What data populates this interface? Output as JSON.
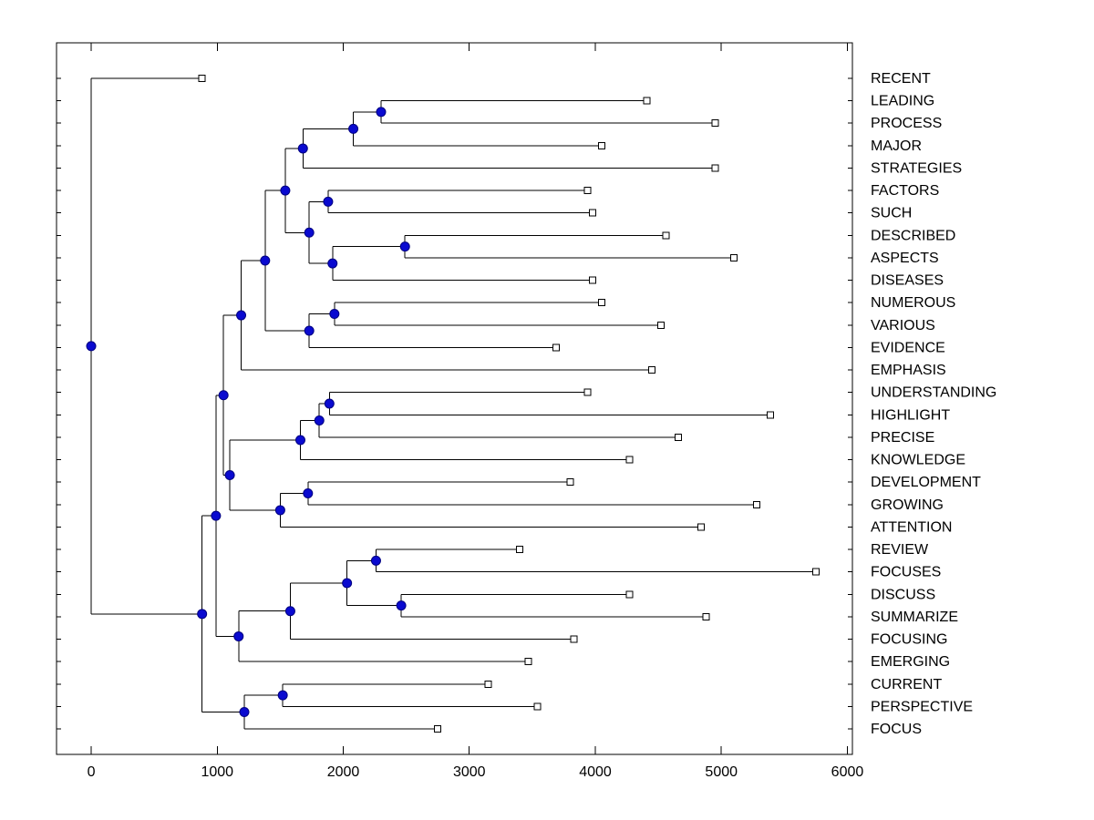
{
  "figure": {
    "background": "#ffffff",
    "axis_color": "#000000",
    "edge_color": "#000000",
    "node_marker_fill": "#0a0ad0",
    "node_marker_stroke": "#000080",
    "leaf_marker_fill": "#ffffff",
    "leaf_marker_stroke": "#000000",
    "label_color": "#000000"
  },
  "chart_data": {
    "type": "dendrogram",
    "orientation": "horizontal, leaves on right",
    "title": "",
    "xlabel": "",
    "ylabel": "",
    "grid": false,
    "legend": false,
    "xlim": [
      -275,
      6040
    ],
    "x_ticks": [
      0,
      1000,
      2000,
      3000,
      4000,
      5000,
      6000
    ],
    "leaf_labels_top_to_bottom": [
      "RECENT",
      "LEADING",
      "PROCESS",
      "MAJOR",
      "STRATEGIES",
      "FACTORS",
      "SUCH",
      "DESCRIBED",
      "ASPECTS",
      "DISEASES",
      "NUMEROUS",
      "VARIOUS",
      "EVIDENCE",
      "EMPHASIS",
      "UNDERSTANDING",
      "HIGHLIGHT",
      "PRECISE",
      "KNOWLEDGE",
      "DEVELOPMENT",
      "GROWING",
      "ATTENTION",
      "REVIEW",
      "FOCUSES",
      "DISCUSS",
      "SUMMARIZE",
      "FOCUSING",
      "EMERGING",
      "CURRENT",
      "PERSPECTIVE",
      "FOCUS"
    ],
    "tree": {
      "d": 0,
      "children": [
        {
          "label": "RECENT",
          "d": 880
        },
        {
          "d": 880,
          "children": [
            {
              "d": 990,
              "children": [
                {
                  "d": 1050,
                  "children": [
                    {
                      "d": 1190,
                      "children": [
                        {
                          "d": 1380,
                          "children": [
                            {
                              "d": 1540,
                              "children": [
                                {
                                  "d": 1680,
                                  "children": [
                                    {
                                      "d": 2080,
                                      "children": [
                                        {
                                          "d": 2300,
                                          "children": [
                                            {
                                              "label": "LEADING",
                                              "d": 4410
                                            },
                                            {
                                              "label": "PROCESS",
                                              "d": 4950
                                            }
                                          ]
                                        },
                                        {
                                          "label": "MAJOR",
                                          "d": 4050
                                        }
                                      ]
                                    },
                                    {
                                      "label": "STRATEGIES",
                                      "d": 4950
                                    }
                                  ]
                                },
                                {
                                  "d": 1730,
                                  "children": [
                                    {
                                      "d": 1880,
                                      "children": [
                                        {
                                          "label": "FACTORS",
                                          "d": 3940
                                        },
                                        {
                                          "label": "SUCH",
                                          "d": 3980
                                        }
                                      ]
                                    },
                                    {
                                      "d": 1915,
                                      "children": [
                                        {
                                          "d": 2490,
                                          "children": [
                                            {
                                              "label": "DESCRIBED",
                                              "d": 4560
                                            },
                                            {
                                              "label": "ASPECTS",
                                              "d": 5100
                                            }
                                          ]
                                        },
                                        {
                                          "label": "DISEASES",
                                          "d": 3980
                                        }
                                      ]
                                    }
                                  ]
                                }
                              ]
                            },
                            {
                              "d": 1730,
                              "children": [
                                {
                                  "d": 1930,
                                  "children": [
                                    {
                                      "label": "NUMEROUS",
                                      "d": 4050
                                    },
                                    {
                                      "label": "VARIOUS",
                                      "d": 4520
                                    }
                                  ]
                                },
                                {
                                  "label": "EVIDENCE",
                                  "d": 3690
                                }
                              ]
                            }
                          ]
                        },
                        {
                          "label": "EMPHASIS",
                          "d": 4450
                        }
                      ]
                    },
                    {
                      "d": 1100,
                      "children": [
                        {
                          "d": 1660,
                          "children": [
                            {
                              "d": 1810,
                              "children": [
                                {
                                  "d": 1890,
                                  "children": [
                                    {
                                      "label": "UNDERSTANDING",
                                      "d": 3940
                                    },
                                    {
                                      "label": "HIGHLIGHT",
                                      "d": 5390
                                    }
                                  ]
                                },
                                {
                                  "label": "PRECISE",
                                  "d": 4660
                                }
                              ]
                            },
                            {
                              "label": "KNOWLEDGE",
                              "d": 4270
                            }
                          ]
                        },
                        {
                          "d": 1500,
                          "children": [
                            {
                              "d": 1720,
                              "children": [
                                {
                                  "label": "DEVELOPMENT",
                                  "d": 3800
                                },
                                {
                                  "label": "GROWING",
                                  "d": 5280
                                }
                              ]
                            },
                            {
                              "label": "ATTENTION",
                              "d": 4840
                            }
                          ]
                        }
                      ]
                    }
                  ]
                },
                {
                  "d": 1170,
                  "children": [
                    {
                      "d": 1580,
                      "children": [
                        {
                          "d": 2030,
                          "children": [
                            {
                              "d": 2260,
                              "children": [
                                {
                                  "label": "REVIEW",
                                  "d": 3400
                                },
                                {
                                  "label": "FOCUSES",
                                  "d": 5750
                                }
                              ]
                            },
                            {
                              "d": 2460,
                              "children": [
                                {
                                  "label": "DISCUSS",
                                  "d": 4270
                                },
                                {
                                  "label": "SUMMARIZE",
                                  "d": 4880
                                }
                              ]
                            }
                          ]
                        },
                        {
                          "label": "FOCUSING",
                          "d": 3830
                        }
                      ]
                    },
                    {
                      "label": "EMERGING",
                      "d": 3470
                    }
                  ]
                }
              ]
            },
            {
              "d": 1215,
              "children": [
                {
                  "d": 1520,
                  "children": [
                    {
                      "label": "CURRENT",
                      "d": 3150
                    },
                    {
                      "label": "PERSPECTIVE",
                      "d": 3540
                    }
                  ]
                },
                {
                  "label": "FOCUS",
                  "d": 2750
                }
              ]
            }
          ]
        }
      ]
    }
  }
}
